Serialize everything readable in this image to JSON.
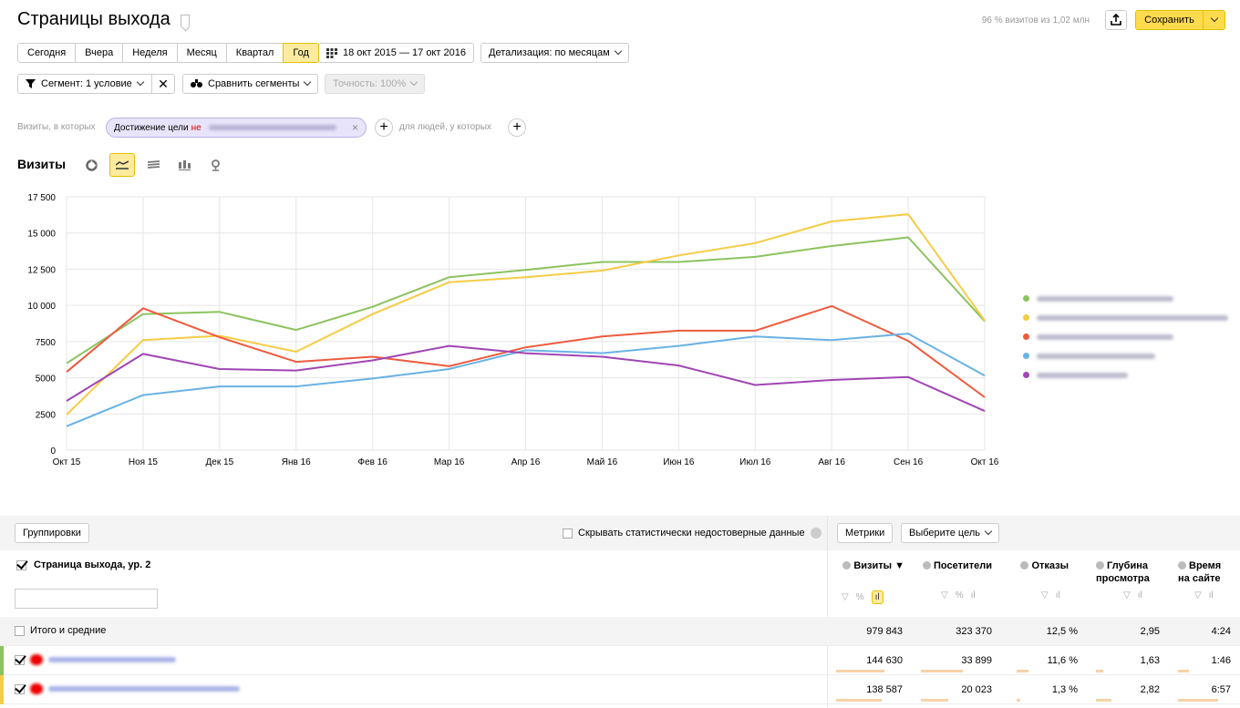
{
  "header": {
    "title": "Страницы выхода",
    "visits_info": "96 % визитов из 1,02 млн",
    "save_label": "Сохранить"
  },
  "periods": [
    "Сегодня",
    "Вчера",
    "Неделя",
    "Месяц",
    "Квартал",
    "Год"
  ],
  "active_period": "Год",
  "date_range": "18 окт 2015 — 17 окт 2016",
  "detail": "Детализация: по месяцам",
  "segment": "Сегмент: 1 условие",
  "compare": "Сравнить сегменты",
  "accuracy": "Точность: 100%",
  "condition": {
    "prefix": "Визиты, в которых",
    "chip_label": "Достижение цели",
    "negation": "не",
    "people": "для людей, у которых"
  },
  "chart_title": "Визиты",
  "chart_data": {
    "type": "line",
    "categories": [
      "Окт 15",
      "Ноя 15",
      "Дек 15",
      "Янв 16",
      "Фев 16",
      "Мар 16",
      "Апр 16",
      "Май 16",
      "Июн 16",
      "Июл 16",
      "Авг 16",
      "Сен 16",
      "Окт 16"
    ],
    "y_ticks": [
      "0",
      "2500",
      "5000",
      "7500",
      "10 000",
      "12 500",
      "15 000",
      "17 500"
    ],
    "ylim": [
      0,
      17500
    ],
    "grid": true,
    "legend_position": "right",
    "series": [
      {
        "color": "#8cc35f",
        "values": [
          6000,
          9400,
          9550,
          8300,
          9900,
          11950,
          12450,
          13000,
          13000,
          13350,
          14100,
          14700,
          8900
        ]
      },
      {
        "color": "#f5cc45",
        "values": [
          2450,
          7600,
          7900,
          6800,
          9400,
          11600,
          11950,
          12400,
          13450,
          14300,
          15800,
          16300,
          8950
        ]
      },
      {
        "color": "#ee5a3d",
        "values": [
          5400,
          9800,
          7800,
          6100,
          6450,
          5800,
          7100,
          7850,
          8250,
          8250,
          9950,
          7550,
          3650
        ]
      },
      {
        "color": "#6ab2e4",
        "values": [
          1650,
          3800,
          4400,
          4400,
          4950,
          5600,
          6900,
          6700,
          7200,
          7850,
          7600,
          8050,
          5150
        ]
      },
      {
        "color": "#a046b4",
        "values": [
          3400,
          6650,
          5600,
          5500,
          6200,
          7200,
          6700,
          6450,
          5850,
          4500,
          4850,
          5050,
          2700
        ]
      }
    ]
  },
  "table": {
    "grouping": "Группировки",
    "hide_stat": "Скрывать статистически недостоверные данные",
    "metrics": "Метрики",
    "goal": "Выберите цель",
    "dimension": "Страница выхода, ур. 2",
    "columns": [
      {
        "label": "Визиты ▼"
      },
      {
        "label": "Посетители"
      },
      {
        "label": "Отказы"
      },
      {
        "label": "Глубина",
        "label2": "просмотра"
      },
      {
        "label": "Время",
        "label2": "на сайте"
      }
    ],
    "totals": {
      "label": "Итого и средние",
      "values": [
        "979 843",
        "323 370",
        "12,5 %",
        "2,95",
        "4:24"
      ]
    },
    "rows": [
      {
        "color": "#8cc35f",
        "values": [
          "144 630",
          "33 899",
          "11,6 %",
          "1,63",
          "1:46"
        ],
        "share": [
          0.72,
          0.59,
          0.2,
          0.12,
          0.2
        ]
      },
      {
        "color": "#f5cc45",
        "values": [
          "138 587",
          "20 023",
          "1,3 %",
          "2,82",
          "6:57"
        ],
        "share": [
          0.69,
          0.38,
          0.06,
          0.25,
          0.75
        ]
      }
    ]
  }
}
